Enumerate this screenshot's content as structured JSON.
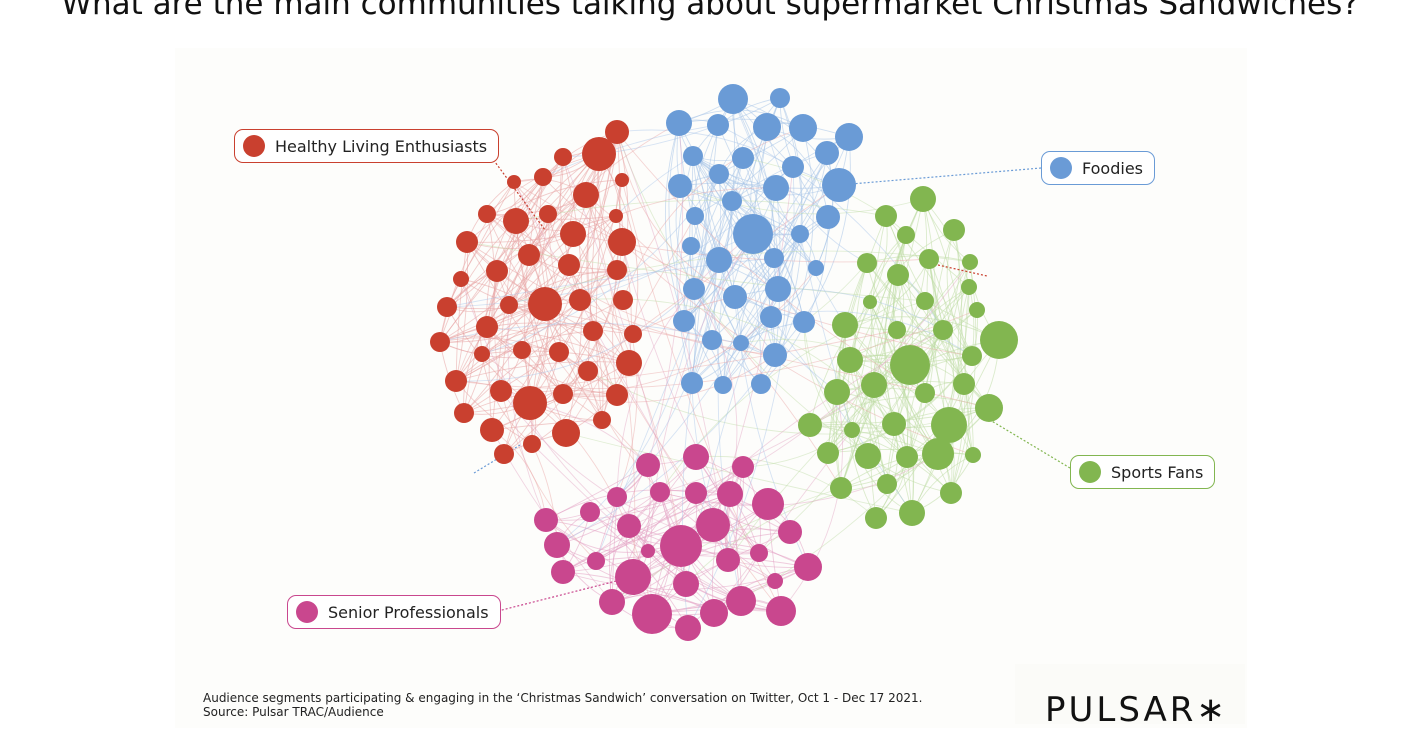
{
  "title": "What are the main communities talking about supermarket Christmas Sandwiches?",
  "communities": [
    {
      "key": "healthy",
      "label": "Healthy Living Enthusiasts",
      "color": "#c9402f"
    },
    {
      "key": "foodies",
      "label": "Foodies",
      "color": "#6a9bd6"
    },
    {
      "key": "sports",
      "label": "Sports Fans",
      "color": "#82b650"
    },
    {
      "key": "senior",
      "label": "Senior Professionals",
      "color": "#c9478e"
    }
  ],
  "edge_colors": {
    "healthy": "#e8a4a4",
    "foodies": "#a7c4e8",
    "sports": "#bfdca6",
    "senior": "#e3a3c4"
  },
  "caption": {
    "line1": "Audience segments participating & engaging in the ‘Christmas Sandwich’ conversation on Twitter, Oct 1  - Dec 17 2021.",
    "line2": "Source: Pulsar TRAC/Audience"
  },
  "logo": {
    "text": "PULSAR",
    "mark": "∗"
  }
}
